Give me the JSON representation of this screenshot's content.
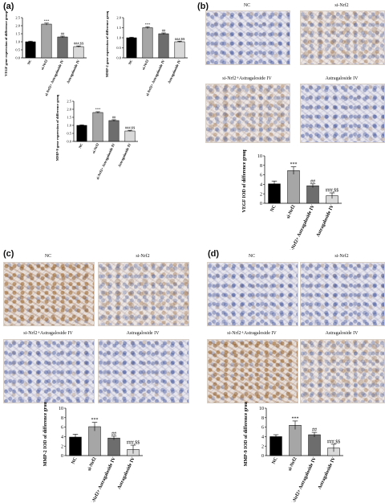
{
  "panels": {
    "a": "(a)",
    "b": "(b)",
    "c": "(c)",
    "d": "(d)"
  },
  "image_labels": {
    "nc": "NC",
    "si_nrf2": "si-Nrf2",
    "combo": "si-Nrf2+Astragaloside IV",
    "astra": "Astragaloside IV"
  },
  "colors": {
    "NC": "#000000",
    "si-Nrf2": "#a6a6a6",
    "si-Nrf2+ Astragaloside IV": "#6d6d6d",
    "Astragaloside IV": "#d9d9d9"
  },
  "chart_data": [
    {
      "id": "a1",
      "type": "bar",
      "title": "",
      "ylabel": "VEGF gene expression of difference groups (Fold)",
      "categories": [
        "NC",
        "si-Nrf2",
        "si-Nrf2+ Astragaloside IV",
        "Astragaloside IV"
      ],
      "values": [
        1.0,
        2.1,
        1.3,
        0.7
      ],
      "errors": [
        0.04,
        0.06,
        0.05,
        0.04
      ],
      "ylim": [
        0,
        2.5
      ],
      "yticks": [
        "0.0",
        "0.5",
        "1.0",
        "1.5",
        "2.0",
        "2.5"
      ],
      "annotations": [
        "",
        "***",
        "##",
        "###,$$"
      ]
    },
    {
      "id": "a2",
      "type": "bar",
      "title": "",
      "ylabel": "MMP-2 gene expression of difference groups (Fold)",
      "categories": [
        "NC",
        "si-Nrf2",
        "si-Nrf2+ Astragaloside IV",
        "Astragaloside IV"
      ],
      "values": [
        1.0,
        1.5,
        1.2,
        0.8
      ],
      "errors": [
        0.03,
        0.05,
        0.04,
        0.03
      ],
      "ylim": [
        0,
        2.0
      ],
      "yticks": [
        "0.0",
        "0.5",
        "1.0",
        "1.5",
        "2.0"
      ],
      "annotations": [
        "",
        "***",
        "##",
        "###,$$"
      ]
    },
    {
      "id": "a3",
      "type": "bar",
      "title": "",
      "ylabel": "MMP-9 gene expression of difference groups (Fold)",
      "categories": [
        "NC",
        "si-Nrf2",
        "si-Nrf2+ Astragaloside IV",
        "Astragaloside IV"
      ],
      "values": [
        1.0,
        1.8,
        1.3,
        0.65
      ],
      "errors": [
        0.03,
        0.05,
        0.05,
        0.04
      ],
      "ylim": [
        0,
        2.5
      ],
      "yticks": [
        "0.0",
        "0.5",
        "1.0",
        "1.5",
        "2.0",
        "2.5"
      ],
      "annotations": [
        "",
        "***",
        "##",
        "###,$$"
      ]
    },
    {
      "id": "b",
      "type": "bar",
      "title": "",
      "ylabel": "VEGF IOD of difference groups",
      "categories": [
        "NC",
        "si-Nrf2",
        "si-Nrf2+ Astragaloside IV",
        "Astragaloside IV"
      ],
      "values": [
        4.1,
        6.9,
        3.7,
        1.6
      ],
      "errors": [
        0.6,
        0.8,
        0.4,
        0.6
      ],
      "ylim": [
        0,
        10
      ],
      "yticks": [
        "0",
        "2",
        "4",
        "6",
        "8",
        "10"
      ],
      "annotations": [
        "",
        "***",
        "##",
        "###,$$"
      ]
    },
    {
      "id": "c",
      "type": "bar",
      "title": "",
      "ylabel": "MMP-2 IOD of difference groups",
      "categories": [
        "NC",
        "si-Nrf2",
        "si-Nrf2+ Astragaloside IV",
        "Astragaloside IV"
      ],
      "values": [
        3.9,
        6.1,
        3.7,
        1.3
      ],
      "errors": [
        0.6,
        0.9,
        0.4,
        0.9
      ],
      "ylim": [
        0,
        10
      ],
      "yticks": [
        "0",
        "2",
        "4",
        "6",
        "8",
        "10"
      ],
      "annotations": [
        "",
        "***",
        "##",
        "###,$$"
      ]
    },
    {
      "id": "d",
      "type": "bar",
      "title": "",
      "ylabel": "MMP-9 IOD of difference groups",
      "categories": [
        "NC",
        "si-Nrf2",
        "si-Nrf2+ Astragaloside IV",
        "Astragaloside IV"
      ],
      "values": [
        4.0,
        6.4,
        4.4,
        1.6
      ],
      "errors": [
        0.4,
        0.9,
        0.5,
        0.8
      ],
      "ylim": [
        0,
        10
      ],
      "yticks": [
        "0",
        "2",
        "4",
        "6",
        "8",
        "10"
      ],
      "annotations": [
        "",
        "***",
        "##",
        "###,$$"
      ]
    }
  ]
}
